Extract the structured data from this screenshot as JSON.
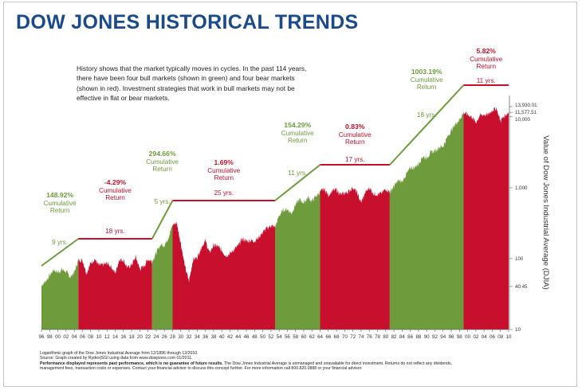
{
  "title": "DOW JONES HISTORICAL TRENDS",
  "intro": "History shows that the market typically moves in cycles. In the past 114 years, there have been four bull markets (shown in green) and four bear markets (shown in red). Investment strategies that work in bull markets may not be effective in flat or bear markets.",
  "notes": {
    "line1": "Logarithmic graph of the Dow Jones Industrial Average from 12/1896 through 12/2010.",
    "line2": "Source: Graph created by Rydex|SGI using data from www.dowjones.com 01/2011.",
    "line3_bold": "Performance displayed represents past performance, which is no guarantee of future results.",
    "line3": " The Dow Jones Industrial Average is unmanaged and unavailable for direct investment. Returns do not reflect any dividends,",
    "line4": "management fees, transaction costs or expenses. Contact your financial advisor to discuss this concept further. For more information call 800.820.0888 or your financial advisor."
  },
  "chart_data": {
    "type": "area",
    "ylabel": "Value of Dow Jones Industrial Average (DJIA)",
    "yscale": "log",
    "ylim": [
      10,
      20000
    ],
    "y_ticks": [
      "13,930.01",
      "11,577.51",
      "10,000",
      "1,000",
      "100",
      "40.45",
      "10"
    ],
    "y_tick_values": [
      13930.01,
      11577.51,
      10000,
      1000,
      100,
      40.45,
      10
    ],
    "x_tick_labels": [
      "96",
      "98",
      "00",
      "02",
      "04",
      "06",
      "08",
      "10",
      "12",
      "14",
      "16",
      "18",
      "20",
      "22",
      "24",
      "26",
      "28",
      "30",
      "32",
      "34",
      "36",
      "38",
      "40",
      "42",
      "44",
      "46",
      "48",
      "50",
      "52",
      "54",
      "56",
      "58",
      "60",
      "62",
      "64",
      "66",
      "68",
      "70",
      "72",
      "74",
      "76",
      "78",
      "80",
      "82",
      "84",
      "86",
      "88",
      "90",
      "92",
      "94",
      "96",
      "98",
      "00",
      "02",
      "04",
      "06",
      "08",
      "10"
    ],
    "x_start_year": 1896,
    "x_end_year": 2010,
    "colors": {
      "bull": "#6e9c3c",
      "bear": "#c8102e",
      "title": "#1a4a8a"
    },
    "periods": [
      {
        "kind": "bull",
        "start": 1896,
        "end": 1905,
        "years": "9 yrs.",
        "return": "148.92%",
        "caption": "Cumulative Return"
      },
      {
        "kind": "bear",
        "start": 1905,
        "end": 1923,
        "years": "18 yrs.",
        "return": "-4.29%",
        "caption": "Cumulative Return"
      },
      {
        "kind": "bull",
        "start": 1923,
        "end": 1928,
        "years": "5 yrs.",
        "return": "294.66%",
        "caption": "Cumulative Return"
      },
      {
        "kind": "bear",
        "start": 1928,
        "end": 1953,
        "years": "25 yrs.",
        "return": "1.69%",
        "caption": "Cumulative Return"
      },
      {
        "kind": "bull",
        "start": 1953,
        "end": 1964,
        "years": "11 yrs.",
        "return": "154.29%",
        "caption": "Cumulative Return"
      },
      {
        "kind": "bear",
        "start": 1964,
        "end": 1981,
        "years": "17 yrs.",
        "return": "0.83%",
        "caption": "Cumulative Return"
      },
      {
        "kind": "bull",
        "start": 1981,
        "end": 1999,
        "years": "18 yrs.",
        "return": "1003.19%",
        "caption": "Cumulative Return"
      },
      {
        "kind": "bear",
        "start": 1999,
        "end": 2010,
        "years": "11 yrs.",
        "return": "5.82%",
        "caption": "Cumulative Return"
      }
    ],
    "series": [
      {
        "values": [
          [
            1896,
            42
          ],
          [
            1897,
            48
          ],
          [
            1898,
            58
          ],
          [
            1899,
            70
          ],
          [
            1900,
            64
          ],
          [
            1901,
            70
          ],
          [
            1902,
            66
          ],
          [
            1903,
            55
          ],
          [
            1904,
            64
          ],
          [
            1905,
            95
          ],
          [
            1906,
            96
          ],
          [
            1907,
            62
          ],
          [
            1908,
            86
          ],
          [
            1909,
            99
          ],
          [
            1910,
            80
          ],
          [
            1911,
            82
          ],
          [
            1912,
            86
          ],
          [
            1913,
            78
          ],
          [
            1914,
            62
          ],
          [
            1915,
            98
          ],
          [
            1916,
            95
          ],
          [
            1917,
            74
          ],
          [
            1918,
            82
          ],
          [
            1919,
            106
          ],
          [
            1920,
            72
          ],
          [
            1921,
            78
          ],
          [
            1922,
            98
          ],
          [
            1923,
            92
          ],
          [
            1924,
            120
          ],
          [
            1925,
            156
          ],
          [
            1926,
            155
          ],
          [
            1927,
            200
          ],
          [
            1928,
            300
          ],
          [
            1929,
            320
          ],
          [
            1930,
            165
          ],
          [
            1931,
            78
          ],
          [
            1932,
            48
          ],
          [
            1933,
            98
          ],
          [
            1934,
            104
          ],
          [
            1935,
            144
          ],
          [
            1936,
            180
          ],
          [
            1937,
            120
          ],
          [
            1938,
            155
          ],
          [
            1939,
            150
          ],
          [
            1940,
            130
          ],
          [
            1941,
            110
          ],
          [
            1942,
            118
          ],
          [
            1943,
            135
          ],
          [
            1944,
            152
          ],
          [
            1945,
            192
          ],
          [
            1946,
            177
          ],
          [
            1947,
            181
          ],
          [
            1948,
            177
          ],
          [
            1949,
            200
          ],
          [
            1950,
            235
          ],
          [
            1951,
            269
          ],
          [
            1952,
            291
          ],
          [
            1953,
            280
          ],
          [
            1954,
            404
          ],
          [
            1955,
            488
          ],
          [
            1956,
            499
          ],
          [
            1957,
            435
          ],
          [
            1958,
            583
          ],
          [
            1959,
            679
          ],
          [
            1960,
            615
          ],
          [
            1961,
            731
          ],
          [
            1962,
            652
          ],
          [
            1963,
            762
          ],
          [
            1964,
            874
          ],
          [
            1965,
            969
          ],
          [
            1966,
            785
          ],
          [
            1967,
            905
          ],
          [
            1968,
            943
          ],
          [
            1969,
            800
          ],
          [
            1970,
            838
          ],
          [
            1971,
            890
          ],
          [
            1972,
            1020
          ],
          [
            1973,
            850
          ],
          [
            1974,
            616
          ],
          [
            1975,
            852
          ],
          [
            1976,
            1004
          ],
          [
            1977,
            831
          ],
          [
            1978,
            805
          ],
          [
            1979,
            838
          ],
          [
            1980,
            963
          ],
          [
            1981,
            875
          ],
          [
            1982,
            1046
          ],
          [
            1983,
            1258
          ],
          [
            1984,
            1211
          ],
          [
            1985,
            1546
          ],
          [
            1986,
            1895
          ],
          [
            1987,
            1938
          ],
          [
            1988,
            2168
          ],
          [
            1989,
            2753
          ],
          [
            1990,
            2633
          ],
          [
            1991,
            3168
          ],
          [
            1992,
            3301
          ],
          [
            1993,
            3754
          ],
          [
            1994,
            3834
          ],
          [
            1995,
            5117
          ],
          [
            1996,
            6448
          ],
          [
            1997,
            7908
          ],
          [
            1998,
            9181
          ],
          [
            1999,
            11497
          ],
          [
            2000,
            10787
          ],
          [
            2001,
            10021
          ],
          [
            2002,
            8341
          ],
          [
            2003,
            10453
          ],
          [
            2004,
            10783
          ],
          [
            2005,
            10717
          ],
          [
            2006,
            12463
          ],
          [
            2007,
            13264
          ],
          [
            2008,
            8776
          ],
          [
            2009,
            10428
          ],
          [
            2010,
            11577
          ]
        ]
      }
    ]
  }
}
